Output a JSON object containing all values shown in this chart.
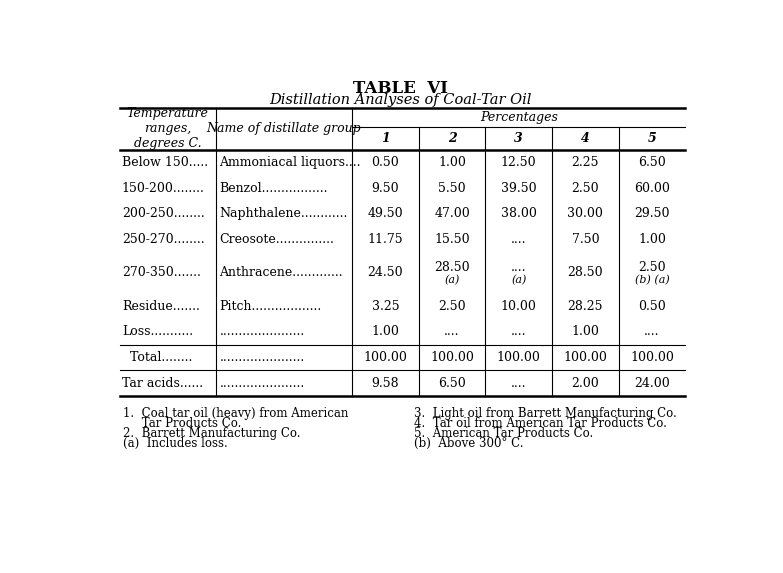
{
  "title1": "TABLE  VI",
  "title2": "Distillation Analyses of Coal-Tar Oil",
  "header_col1": "Temperature\nranges,\ndegrees C.",
  "header_col2": "Name of distillate group",
  "header_pct": "Percentages",
  "header_nums": [
    "1",
    "2",
    "3",
    "4",
    "5"
  ],
  "rows": [
    {
      "col1": "Below 150.....",
      "col2": "Ammoniacal liquors....",
      "vals": [
        "0.50",
        "1.00",
        "12.50",
        "2.25",
        "6.50"
      ],
      "subvals": [
        "",
        "",
        "",
        "",
        ""
      ]
    },
    {
      "col1": "150-200........",
      "col2": "Benzol.................",
      "vals": [
        "9.50",
        "5.50",
        "39.50",
        "2.50",
        "60.00"
      ],
      "subvals": [
        "",
        "",
        "",
        "",
        ""
      ]
    },
    {
      "col1": "200-250........",
      "col2": "Naphthalene............",
      "vals": [
        "49.50",
        "47.00",
        "38.00",
        "30.00",
        "29.50"
      ],
      "subvals": [
        "",
        "",
        "",
        "",
        ""
      ]
    },
    {
      "col1": "250-270........",
      "col2": "Creosote...............",
      "vals": [
        "11.75",
        "15.50",
        "....",
        "7.50",
        "1.00"
      ],
      "subvals": [
        "",
        "",
        "",
        "",
        ""
      ]
    },
    {
      "col1": "270-350.......",
      "col2": "Anthracene.............",
      "vals": [
        "24.50",
        "28.50",
        "....",
        "28.50",
        "2.50"
      ],
      "subvals": [
        "",
        "(a)",
        "(a)",
        "",
        "(b) (a)"
      ]
    },
    {
      "col1": "Residue.......",
      "col2": "Pitch..................",
      "vals": [
        "3.25",
        "2.50",
        "10.00",
        "28.25",
        "0.50"
      ],
      "subvals": [
        "",
        "",
        "",
        "",
        ""
      ]
    },
    {
      "col1": "Loss...........",
      "col2": "......................",
      "vals": [
        "1.00",
        "....",
        "....",
        "1.00",
        "...."
      ],
      "subvals": [
        "",
        "",
        "",
        "",
        ""
      ]
    },
    {
      "col1": "  Total........",
      "col2": "......................",
      "vals": [
        "100.00",
        "100.00",
        "100.00",
        "100.00",
        "100.00"
      ],
      "subvals": [
        "",
        "",
        "",
        "",
        ""
      ],
      "total_row": true
    },
    {
      "col1": "Tar acids......",
      "col2": "......................",
      "vals": [
        "9.58",
        "6.50",
        "....",
        "2.00",
        "24.00"
      ],
      "subvals": [
        "",
        "",
        "",
        "",
        ""
      ]
    }
  ],
  "footnotes_left": [
    "1.  Coal tar oil (heavy) from American",
    "     Tar Products Co.",
    "2.  Barrett Manufacturing Co.",
    "(a)  Includes loss."
  ],
  "footnotes_right": [
    "3.  Light oil from Barrett Manufacturing Co.",
    "4.  Tar oil from American Tar Products Co.",
    "5.  American Tar Products Co.",
    "(b)  Above 300° C."
  ],
  "bg_color": "#ffffff",
  "text_color": "#000000",
  "font_size": 9,
  "title_font_size": 11
}
